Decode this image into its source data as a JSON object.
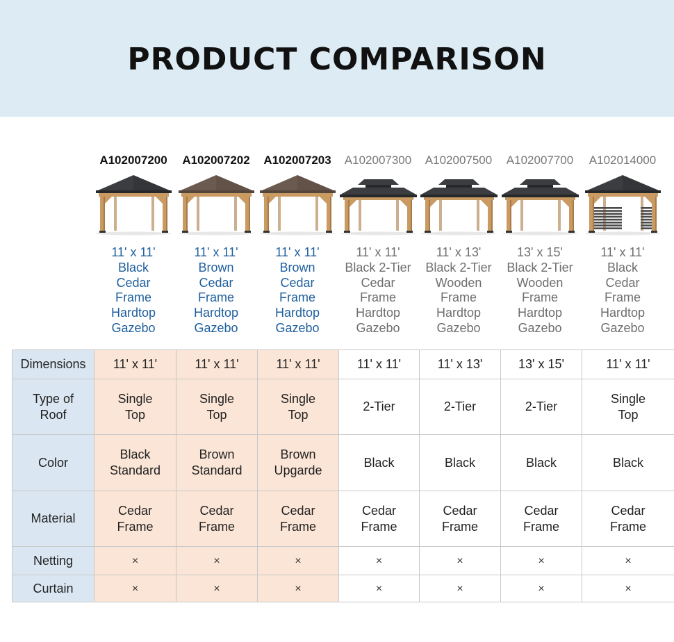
{
  "header": {
    "title": "PRODUCT COMPARISON"
  },
  "products": [
    {
      "sku": "A102007200",
      "name_lines": [
        "11' x 11'",
        "Black",
        "Cedar",
        "Frame",
        "Hardtop",
        "Gazebo"
      ],
      "featured": true,
      "image": "single-top-black-gazebo"
    },
    {
      "sku": "A102007202",
      "name_lines": [
        "11' x 11'",
        "Brown",
        "Cedar",
        "Frame",
        "Hardtop",
        "Gazebo"
      ],
      "featured": true,
      "image": "single-top-brown-gazebo"
    },
    {
      "sku": "A102007203",
      "name_lines": [
        "11' x 11'",
        "Brown",
        "Cedar",
        "Frame",
        "Hardtop",
        "Gazebo"
      ],
      "featured": true,
      "image": "single-top-brown-gazebo"
    },
    {
      "sku": "A102007300",
      "name_lines": [
        "11' x 11'",
        "Black 2-Tier",
        "Cedar",
        "Frame",
        "Hardtop",
        "Gazebo"
      ],
      "featured": false,
      "image": "two-tier-black-gazebo"
    },
    {
      "sku": "A102007500",
      "name_lines": [
        "11' x 13'",
        "Black 2-Tier",
        "Wooden",
        "Frame",
        "Hardtop",
        "Gazebo"
      ],
      "featured": false,
      "image": "two-tier-black-gazebo"
    },
    {
      "sku": "A102007700",
      "name_lines": [
        "13' x 15'",
        "Black 2-Tier",
        "Wooden",
        "Frame",
        "Hardtop",
        "Gazebo"
      ],
      "featured": false,
      "image": "two-tier-black-gazebo"
    },
    {
      "sku": "A102014000",
      "name_lines": [
        "11' x 11'",
        "Black",
        "Cedar",
        "Frame",
        "Hardtop",
        "Gazebo"
      ],
      "featured": false,
      "image": "single-top-gazebo-with-privacy-wall"
    }
  ],
  "table": {
    "rows": [
      {
        "label": [
          "Dimensions"
        ],
        "cells": [
          [
            "11' x 11'"
          ],
          [
            "11' x 11'"
          ],
          [
            "11' x 11'"
          ],
          [
            "11' x 11'"
          ],
          [
            "11' x 13'"
          ],
          [
            "13' x 15'"
          ],
          [
            "11' x 11'"
          ]
        ]
      },
      {
        "label": [
          "Type of",
          "Roof"
        ],
        "cells": [
          [
            "Single",
            "Top"
          ],
          [
            "Single",
            "Top"
          ],
          [
            "Single",
            "Top"
          ],
          [
            "2-Tier"
          ],
          [
            "2-Tier"
          ],
          [
            "2-Tier"
          ],
          [
            "Single",
            "Top"
          ]
        ]
      },
      {
        "label": [
          "Color"
        ],
        "cells": [
          [
            "Black",
            "Standard"
          ],
          [
            "Brown",
            "Standard"
          ],
          [
            "Brown",
            "Upgarde"
          ],
          [
            "Black"
          ],
          [
            "Black"
          ],
          [
            "Black"
          ],
          [
            "Black"
          ]
        ]
      },
      {
        "label": [
          "Material"
        ],
        "cells": [
          [
            "Cedar",
            "Frame"
          ],
          [
            "Cedar",
            "Frame"
          ],
          [
            "Cedar",
            "Frame"
          ],
          [
            "Cedar",
            "Frame"
          ],
          [
            "Cedar",
            "Frame"
          ],
          [
            "Cedar",
            "Frame"
          ],
          [
            "Cedar",
            "Frame"
          ]
        ]
      },
      {
        "label": [
          "Netting"
        ],
        "cells": [
          [
            "×"
          ],
          [
            "×"
          ],
          [
            "×"
          ],
          [
            "×"
          ],
          [
            "×"
          ],
          [
            "×"
          ],
          [
            "×"
          ]
        ]
      },
      {
        "label": [
          "Curtain"
        ],
        "cells": [
          [
            "×"
          ],
          [
            "×"
          ],
          [
            "×"
          ],
          [
            "×"
          ],
          [
            "×"
          ],
          [
            "×"
          ],
          [
            "×"
          ]
        ]
      }
    ]
  },
  "colors": {
    "banner_bg": "#dcebf4",
    "row_header_bg": "#dae6f1",
    "featured_bg": "#fbe5d6",
    "featured_name": "#1f5f9e",
    "other_name": "#6e6e6e"
  }
}
